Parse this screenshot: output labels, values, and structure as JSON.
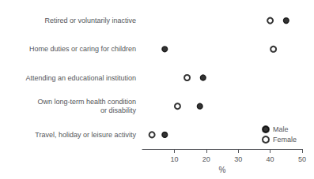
{
  "chart_data": {
    "type": "scatter",
    "categories": [
      "Travel, holiday or leisure activity",
      "Own long-term health condition\nor disability",
      "Attending an educational institution",
      "Home duties or caring for children",
      "Retired or voluntarily inactive"
    ],
    "series": [
      {
        "name": "Male",
        "color": "#000000",
        "marker": "circle",
        "values": [
          7,
          18,
          19,
          7,
          45
        ]
      },
      {
        "name": "Female",
        "color": "#000000",
        "marker": "hollow",
        "values": [
          3,
          11,
          14,
          41,
          40
        ]
      }
    ],
    "xlabel": "%",
    "xlim": [
      0,
      50
    ],
    "xticks": [
      10,
      20,
      30,
      40,
      50
    ],
    "grid": false,
    "legend": "lower right"
  }
}
